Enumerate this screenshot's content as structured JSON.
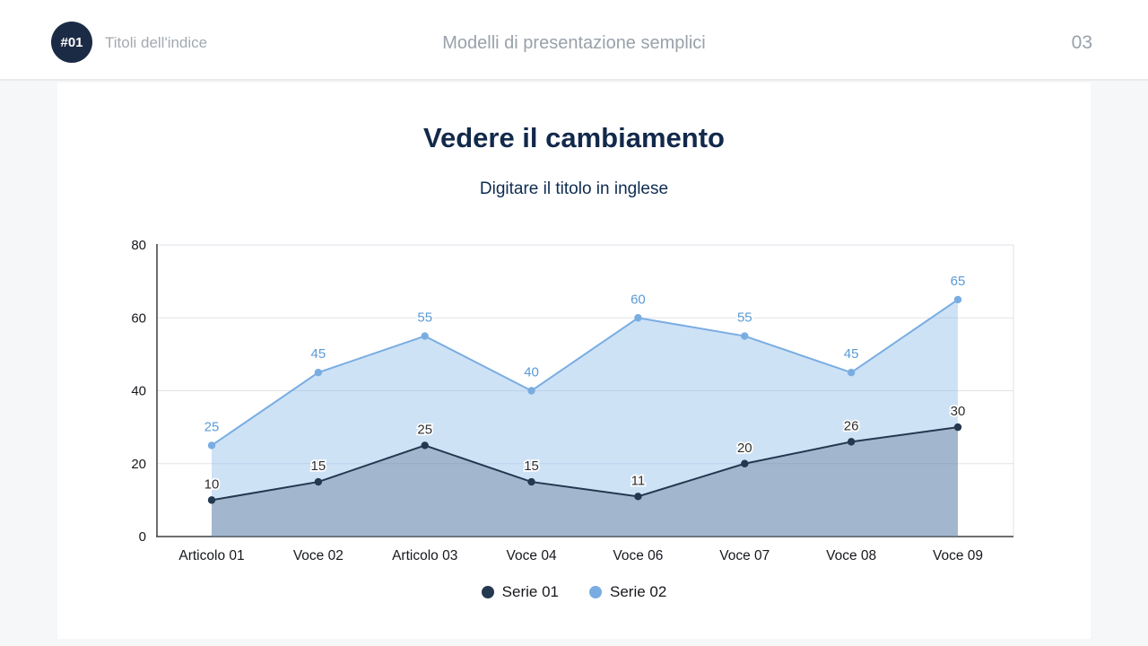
{
  "header": {
    "badge": "#01",
    "index_label": "Titoli dell'indice",
    "title": "Modelli di presentazione semplici",
    "page_number": "03"
  },
  "slide": {
    "title": "Vedere il cambiamento",
    "subtitle": "Digitare il titolo in inglese"
  },
  "chart_data": {
    "type": "area",
    "title": "Vedere il cambiamento",
    "categories": [
      "Articolo 01",
      "Voce 02",
      "Articolo 03",
      "Voce 04",
      "Voce 06",
      "Voce 07",
      "Voce 08",
      "Voce 09"
    ],
    "series": [
      {
        "name": "Serie 01",
        "values": [
          10,
          15,
          25,
          15,
          11,
          20,
          26,
          30
        ],
        "color": "#24384f",
        "area_color": "rgba(58,82,112,0.30)",
        "label_color": "#2e2e2e"
      },
      {
        "name": "Serie 02",
        "values": [
          25,
          45,
          55,
          40,
          60,
          55,
          45,
          65
        ],
        "color": "#79ade2",
        "area_color": "rgba(147,190,235,0.45)",
        "label_color": "#5b9bd5"
      }
    ],
    "ylim": [
      0,
      80
    ],
    "ytick_step": 20,
    "grid": true,
    "legend_position": "bottom",
    "xlabel": "",
    "ylabel": ""
  }
}
